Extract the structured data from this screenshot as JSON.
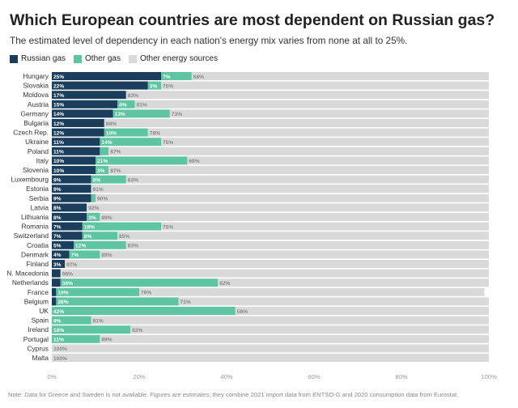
{
  "title": "Which European countries are most dependent on Russian gas?",
  "subtitle": "The estimated level of dependency in each nation's energy mix varies from none at all to 25%.",
  "note": "Note: Data for Greece and Sweden is not available. Figures are estimates; they combine 2021 import data from ENTSO-G and 2020 consumption data from Eurostat.",
  "colors": {
    "russian": "#1a3e5c",
    "other_gas": "#5ec4a1",
    "other_energy": "#d9d9d9",
    "axis_text": "#999999"
  },
  "chart_data": {
    "type": "bar",
    "orientation": "horizontal",
    "stacked": true,
    "categories": [
      "Hungary",
      "Slovakia",
      "Moldova",
      "Austria",
      "Germany",
      "Bulgaria",
      "Czech Rep.",
      "Ukraine",
      "Poland",
      "Italy",
      "Slovenia",
      "Luxembourg",
      "Estonia",
      "Serbia",
      "Latvia",
      "Lithuania",
      "Romania",
      "Switzerland",
      "Croatia",
      "Denmark",
      "Finland",
      "N. Macedonia",
      "Netherlands",
      "France",
      "Belgium",
      "UK",
      "Spain",
      "Ireland",
      "Portugal",
      "Cyprus",
      "Malta"
    ],
    "series": [
      {
        "name": "Russian gas",
        "values": [
          25,
          22,
          17,
          15,
          14,
          12,
          12,
          11,
          11,
          10,
          10,
          9,
          9,
          9,
          8,
          8,
          7,
          7,
          5,
          4,
          3,
          2,
          2,
          1,
          1,
          0,
          0,
          0,
          0,
          0,
          0
        ]
      },
      {
        "name": "Other gas",
        "values": [
          7,
          3,
          0,
          4,
          13,
          0,
          10,
          14,
          2,
          21,
          3,
          8,
          0,
          1,
          0,
          3,
          18,
          8,
          12,
          7,
          0,
          0,
          36,
          19,
          28,
          42,
          9,
          18,
          11,
          0,
          0
        ]
      },
      {
        "name": "Other energy sources",
        "values": [
          68,
          75,
          83,
          81,
          73,
          88,
          78,
          75,
          87,
          69,
          87,
          83,
          91,
          90,
          92,
          89,
          75,
          85,
          83,
          89,
          97,
          98,
          62,
          79,
          71,
          58,
          91,
          82,
          89,
          100,
          100
        ]
      }
    ],
    "labels": {
      "russian": [
        "25%",
        "22%",
        "17%",
        "15%",
        "14%",
        "12%",
        "12%",
        "11%",
        "11%",
        "10%",
        "10%",
        "9%",
        "9%",
        "9%",
        "8%",
        "8%",
        "7%",
        "7%",
        "5%",
        "4%",
        "3%",
        "",
        "",
        "",
        "",
        "",
        "",
        "",
        "",
        "",
        ""
      ],
      "other_gas": [
        "7%",
        "3%",
        "",
        "4%",
        "13%",
        "",
        "10%",
        "14%",
        "",
        "21%",
        "3%",
        "8%",
        "",
        "",
        "",
        "3%",
        "18%",
        "8%",
        "12%",
        "7%",
        "",
        "",
        "36%",
        "19%",
        "28%",
        "42%",
        "9%",
        "18%",
        "11%",
        "",
        ""
      ],
      "other_energy": [
        "68%",
        "75%",
        "83%",
        "81%",
        "73%",
        "88%",
        "78%",
        "75%",
        "87%",
        "69%",
        "87%",
        "83%",
        "91%",
        "90%",
        "92%",
        "89%",
        "75%",
        "85%",
        "83%",
        "89%",
        "97%",
        "98%",
        "62%",
        "79%",
        "71%",
        "58%",
        "91%",
        "82%",
        "89%",
        "100%",
        "100%"
      ]
    },
    "x_ticks": [
      "0%",
      "20%",
      "40%",
      "60%",
      "80%",
      "100%"
    ],
    "xlim": [
      0,
      100
    ],
    "legend_position": "top-left",
    "grid": false
  }
}
